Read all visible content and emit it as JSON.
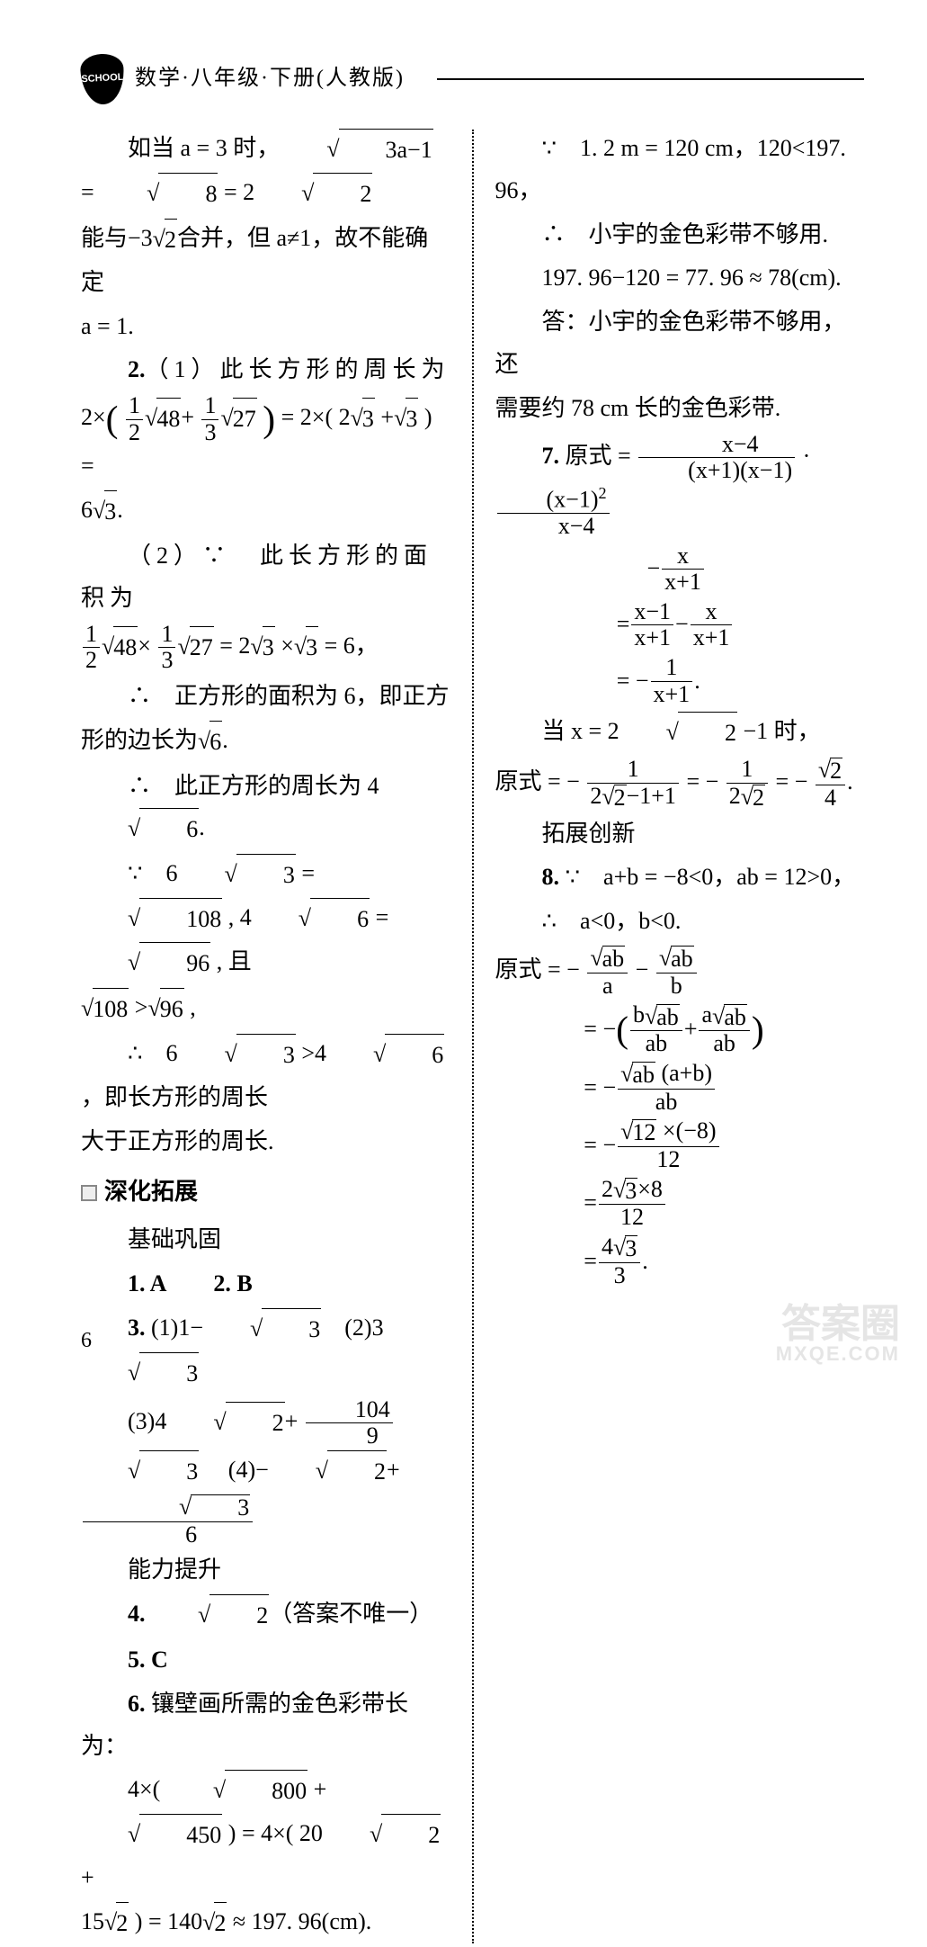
{
  "header": {
    "logo_text": "SCHOOL",
    "title": "数学·八年级·下册(人教版)"
  },
  "page_number": "6",
  "left": {
    "p1_prefix": "如当 a = 3 时，",
    "p1_eq_a": "3a−1",
    "p1_eq_b": "8",
    "p1_eq_c": "2",
    "p1_eq_d": "2",
    "p2_a": "能与−3",
    "p2_b": "2",
    "p2_c": "合并，但 a≠1，故不能确定",
    "p3": "a = 1.",
    "q2_head": "2.",
    "q2_1_pre": "（1）此长方形的周长为",
    "q2_1_lhs_2x": "2×",
    "q2_1_frac1n": "1",
    "q2_1_frac1d": "2",
    "q2_1_r48": "48",
    "q2_1_plus": "+",
    "q2_1_frac2n": "1",
    "q2_1_frac2d": "3",
    "q2_1_r27": "27",
    "q2_1_mid": " = 2×( 2",
    "q2_1_r3a": "3",
    "q2_1_mid2": " +",
    "q2_1_r3b": "3",
    "q2_1_end": " ) =",
    "q2_1_res": "6",
    "q2_1_res_r": "3",
    "q2_1_res_dot": ".",
    "q2_2_pre": "（2）∵　此长方形的面积为",
    "q2_2_frac1n": "1",
    "q2_2_frac1d": "2",
    "q2_2_r48": "48",
    "q2_2_x": "×",
    "q2_2_frac2n": "1",
    "q2_2_frac2d": "3",
    "q2_2_r27": "27",
    "q2_2_eq": " = 2",
    "q2_2_r3a": "3",
    "q2_2_x2": " ×",
    "q2_2_r3b": "3",
    "q2_2_res": " = 6，",
    "q2_2_c1": "∴　正方形的面积为 6，即正方",
    "q2_2_c2": "形的边长为",
    "q2_2_c2_r": "6",
    "q2_2_c2_dot": ".",
    "q2_2_c3": "∴　此正方形的周长为 4",
    "q2_2_c3_r": "6",
    "q2_2_c3_dot": ".",
    "q2_2_c4a": "∵　6",
    "q2_2_c4r1": "3",
    "q2_2_c4b": " = ",
    "q2_2_c4r2": "108",
    "q2_2_c4c": " , 4",
    "q2_2_c4r3": "6",
    "q2_2_c4d": " = ",
    "q2_2_c4r4": "96",
    "q2_2_c4e": " , 且",
    "q2_2_c5r1": "108",
    "q2_2_c5a": " >",
    "q2_2_c5r2": "96",
    "q2_2_c5b": " ,",
    "q2_2_c6a": "∴　6",
    "q2_2_c6r1": "3",
    "q2_2_c6b": " >4",
    "q2_2_c6r2": "6",
    "q2_2_c6c": " ，即长方形的周长",
    "q2_2_c7": "大于正方形的周长.",
    "sec_title": "深化拓展",
    "sub_jichu": "基础巩固",
    "a1": "1. A",
    "a2": "2. B",
    "a3_pre": "3. (1)1−",
    "a3_r1": "3",
    "a3_sp": "　(2)3",
    "a3_r2": "3",
    "a3_3_pre": "(3)4",
    "a3_3_r1": "2",
    "a3_3_plus": "+",
    "a3_3_fracn": "104",
    "a3_3_fracd": "9",
    "a3_3_r2": "3",
    "a3_4_pre": "　(4)−",
    "a3_4_r1": "2",
    "a3_4_plus": "+",
    "a3_4_fracn_r": "3",
    "a3_4_fracd": "6",
    "sub_nengli": "能力提升",
    "a4_pre": "4. ",
    "a4_r": "2",
    "a4_suf": "（答案不唯一）",
    "a5": "5. C",
    "a6_head": "6. 镶壁画所需的金色彩带长为：",
    "a6_l1a": "4×( ",
    "a6_l1r1": "800",
    "a6_l1b": " +",
    "a6_l1r2": "450",
    "a6_l1c": " ) = 4×( 20",
    "a6_l1r3": "2",
    "a6_l1d": " +",
    "a6_l2a": "15",
    "a6_l2r1": "2",
    "a6_l2b": " ) = 140",
    "a6_l2r2": "2",
    "a6_l2c": " ≈ 197. 96(cm)."
  },
  "right": {
    "l1": "∵　1. 2 m = 120 cm，120<197. 96，",
    "l2": "∴　小宇的金色彩带不够用.",
    "l3": "197. 96−120 = 77. 96 ≈ 78(cm).",
    "l4": "答：小宇的金色彩带不够用，还",
    "l4b": "需要约 78 cm 长的金色彩带.",
    "q7_head": "7. 原式 =",
    "q7_f1n": "x−4",
    "q7_f1d": "(x+1)(x−1)",
    "q7_dot": " · ",
    "q7_f2n": "(x−1)",
    "q7_f2n_sup": "2",
    "q7_f2d": "x−4",
    "q7_r2_minus": "−",
    "q7_r2n": "x",
    "q7_r2d": "x+1",
    "q7_r3_eq": "=",
    "q7_r3an": "x−1",
    "q7_r3ad": "x+1",
    "q7_r3_minus": "−",
    "q7_r3bn": "x",
    "q7_r3bd": "x+1",
    "q7_r4_eq": "= −",
    "q7_r4n": "1",
    "q7_r4d": "x+1",
    "q7_r4_dot": ".",
    "q7_when": "当 x = 2",
    "q7_when_r": "2",
    "q7_when_b": " −1 时，",
    "q7_res_pre": "原式 = −",
    "q7_res1n": "1",
    "q7_res1d_a": "2",
    "q7_res1d_r": "2",
    "q7_res1d_b": "−1+1",
    "q7_res_eq1": " = −",
    "q7_res2n": "1",
    "q7_res2d_a": "2",
    "q7_res2d_r": "2",
    "q7_res_eq2": " = −",
    "q7_res3n_r": "2",
    "q7_res3d": "4",
    "q7_res_dot": ".",
    "sub_tuozhan": "拓展创新",
    "q8_head": "8. ∵　a+b = −8<0，ab = 12>0，",
    "q8_l2": "∴　a<0，b<0.",
    "q8_pre": "原式 = −",
    "q8_r1n_r": "ab",
    "q8_r1d": "a",
    "q8_minus": "−",
    "q8_r2n_r": "ab",
    "q8_r2d": "b",
    "q8_s2_eq": "= −",
    "q8_s2an": "b",
    "q8_s2an_r": "ab",
    "q8_s2ad": "ab",
    "q8_s2_plus": "+",
    "q8_s2bn": "a",
    "q8_s2bn_r": "ab",
    "q8_s2bd": "ab",
    "q8_s3_eq": "= −",
    "q8_s3n_r": "ab",
    "q8_s3n_b": " (a+b)",
    "q8_s3d": "ab",
    "q8_s4_eq": "= −",
    "q8_s4n_r": "12",
    "q8_s4n_b": " ×(−8)",
    "q8_s4d": "12",
    "q8_s5_eq": "=",
    "q8_s5n_a": "2",
    "q8_s5n_r": "3",
    "q8_s5n_b": "×8",
    "q8_s5d": "12",
    "q8_s6_eq": " =",
    "q8_s6n_a": "4",
    "q8_s6n_r": "3",
    "q8_s6d": "3",
    "q8_s6_dot": "."
  },
  "watermark": {
    "main": "答案圈",
    "sub": "MXQE.COM"
  },
  "colors": {
    "text": "#000000",
    "bg": "#ffffff",
    "divider": "#000000"
  }
}
